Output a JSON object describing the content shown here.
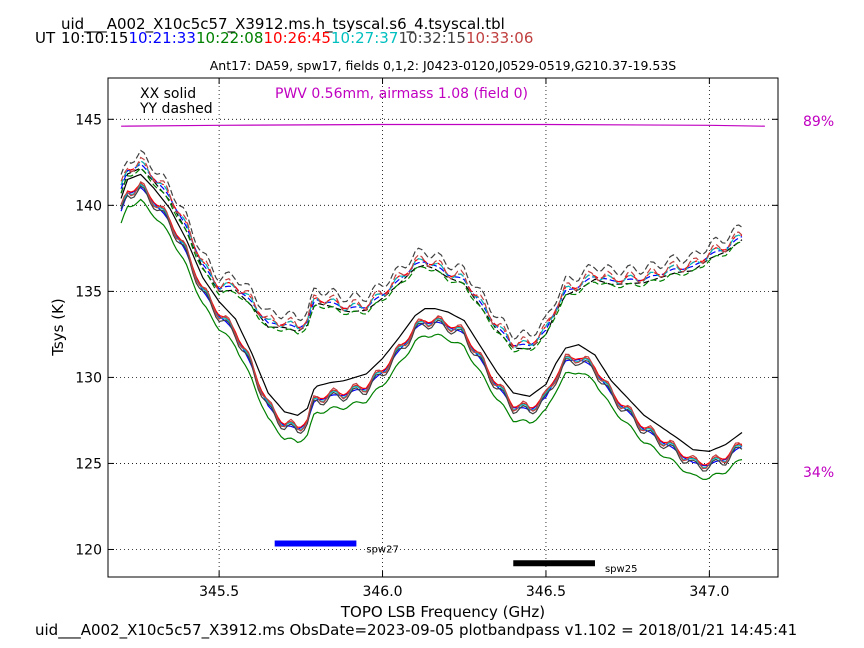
{
  "header": {
    "file_title": "uid___A002_X10c5c57_X3912.ms.h_tsyscal.s6_4.tsyscal.tbl",
    "ut_label": "UT",
    "times": [
      {
        "text": "10:10:15",
        "color": "#000000"
      },
      {
        "text": "10:21:33",
        "color": "#0000ff"
      },
      {
        "text": "10:22:08",
        "color": "#008000"
      },
      {
        "text": "10:26:45",
        "color": "#ff0000"
      },
      {
        "text": "10:27:37",
        "color": "#00bfbf"
      },
      {
        "text": "10:32:15",
        "color": "#404040"
      },
      {
        "text": "10:33:06",
        "color": "#c04040"
      }
    ]
  },
  "footer": {
    "text": "uid___A002_X10c5c57_X3912.ms  ObsDate=2023-09-05   plotbandpass v1.102 = 2018/01/21 14:45:41"
  },
  "chart_data": {
    "type": "line",
    "title": "Ant17: DA59,  spw17,  fields 0,1,2: J0423-0120,J0529-0519,G210.37-19.53S",
    "xlabel": "TOPO LSB Frequency (GHz)",
    "ylabel": "Tsys (K)",
    "xlim": [
      345.16,
      347.21
    ],
    "ylim": [
      118.4,
      147.4
    ],
    "xticks": [
      345.5,
      346.0,
      346.5,
      347.0
    ],
    "xtick_labels": [
      "345.5",
      "346.0",
      "346.5",
      "347.0"
    ],
    "yticks": [
      120,
      125,
      130,
      135,
      140,
      145
    ],
    "ytick_labels": [
      "120",
      "125",
      "130",
      "135",
      "140",
      "145"
    ],
    "grid": true,
    "legend": {
      "solid": "XX solid",
      "dashed": "YY dashed",
      "placement": "top-left"
    },
    "annotation": {
      "text": "PWV 0.56mm, airmass 1.08 (field 0)",
      "color": "#c000c0"
    },
    "transmission": {
      "color": "#c000c0",
      "top_label": "89%",
      "bottom_label": "34%",
      "points": [
        [
          345.2,
          144.6
        ],
        [
          345.5,
          144.65
        ],
        [
          346.0,
          144.7
        ],
        [
          346.5,
          144.7
        ],
        [
          347.0,
          144.65
        ],
        [
          347.17,
          144.6
        ]
      ]
    },
    "spw_bars": [
      {
        "label": "spw27",
        "x_start": 345.67,
        "x_end": 345.92,
        "y": 120.35,
        "color": "#0000ff"
      },
      {
        "label": "spw25",
        "x_start": 346.4,
        "x_end": 346.65,
        "y": 119.2,
        "color": "#000000"
      }
    ],
    "base_curve": {
      "x": [
        345.2,
        345.22,
        345.26,
        345.3,
        345.35,
        345.4,
        345.45,
        345.5,
        345.55,
        345.6,
        345.65,
        345.7,
        345.74,
        345.77,
        345.79,
        345.8,
        345.82,
        345.84,
        345.88,
        345.95,
        346.0,
        346.05,
        346.1,
        346.13,
        346.16,
        346.2,
        346.25,
        346.3,
        346.35,
        346.4,
        346.45,
        346.5,
        346.53,
        346.56,
        346.6,
        346.65,
        346.7,
        346.8,
        346.9,
        346.95,
        347.0,
        347.05,
        347.1
      ],
      "y": [
        139.6,
        140.7,
        141.0,
        140.2,
        139.0,
        137.2,
        135.0,
        133.6,
        132.6,
        130.6,
        128.3,
        127.2,
        127.0,
        127.4,
        128.5,
        128.7,
        128.8,
        128.9,
        129.0,
        129.4,
        130.3,
        131.5,
        132.8,
        133.2,
        133.2,
        133.0,
        132.5,
        131.0,
        129.5,
        128.3,
        128.1,
        128.8,
        130.0,
        130.9,
        131.1,
        130.5,
        129.0,
        127.0,
        125.7,
        125.0,
        124.9,
        125.3,
        126.0
      ],
      "color": "#0000ff"
    },
    "series_xx": [
      {
        "color": "#000000",
        "offset": 0.8
      },
      {
        "color": "#0000ff",
        "offset": 0.0
      },
      {
        "color": "#008000",
        "offset": -0.75
      },
      {
        "color": "#ff0000",
        "offset": 0.15
      },
      {
        "color": "#00bfbf",
        "offset": 0.05
      },
      {
        "color": "#404040",
        "offset": -0.1
      },
      {
        "color": "#c04040",
        "offset": 0.1
      }
    ],
    "series_yy": [
      {
        "color": "#000000",
        "offset": 1.1
      },
      {
        "color": "#0000ff",
        "offset": 1.3
      },
      {
        "color": "#008000",
        "offset": 1.0
      },
      {
        "color": "#ff0000",
        "offset": 1.4
      },
      {
        "color": "#00bfbf",
        "offset": 1.35
      },
      {
        "color": "#404040",
        "offset": 1.9
      },
      {
        "color": "#c04040",
        "offset": 1.45
      }
    ],
    "yy_extra_bump": {
      "x": [
        345.2,
        345.5,
        345.7,
        345.8,
        345.9,
        346.0,
        346.2,
        346.4,
        346.6,
        346.7,
        346.8,
        346.9,
        347.0,
        347.1
      ],
      "y": [
        0.0,
        0.3,
        4.6,
        4.5,
        3.6,
        3.2,
        1.7,
        2.3,
        2.9,
        5.3,
        7.4,
        9.3,
        10.9,
        10.9
      ]
    }
  }
}
